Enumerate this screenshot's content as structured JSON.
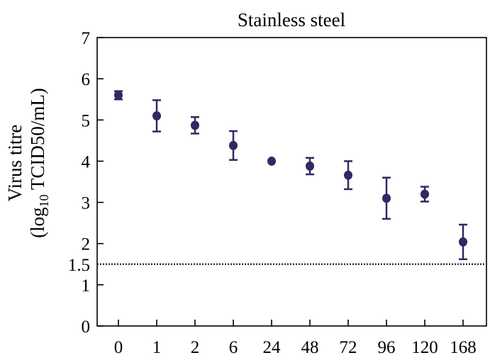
{
  "chart_data": {
    "type": "scatter",
    "title": "Stainless steel",
    "ylabel_line1": "Virus titre",
    "ylabel_line2_prefix": "(log",
    "ylabel_line2_sub": "10",
    "ylabel_line2_suffix": " TCID50/mL)",
    "xlabel": "",
    "categories": [
      "0",
      "1",
      "2",
      "6",
      "24",
      "48",
      "72",
      "96",
      "120",
      "168"
    ],
    "ylim": [
      0,
      7
    ],
    "yticks": [
      "0",
      "1",
      "2",
      "3",
      "4",
      "5",
      "6",
      "7"
    ],
    "extra_ytick": "1.5",
    "detection_limit": 1.5,
    "series": [
      {
        "values": [
          5.6,
          5.1,
          4.87,
          4.38,
          4.0,
          3.88,
          3.66,
          3.1,
          3.2,
          2.04
        ],
        "errors": [
          0.1,
          0.38,
          0.2,
          0.35,
          0.0,
          0.2,
          0.34,
          0.5,
          0.18,
          0.42
        ]
      }
    ],
    "colors": {
      "marker": "#2e2a63",
      "axis": "#000000",
      "dotted_line": "#333333"
    },
    "grid": false
  }
}
